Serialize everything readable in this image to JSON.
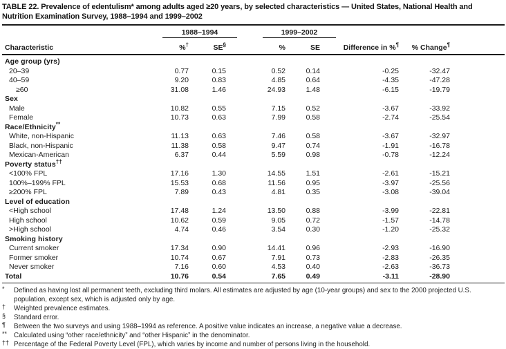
{
  "title": "TABLE 22. Prevalence of edentulism* among adults aged ≥20 years, by selected characteristics — United States, National Health and Nutrition Examination Survey, 1988–1994 and 1999–2002",
  "table": {
    "span_headers": [
      {
        "label": "1988–1994"
      },
      {
        "label": "1999–2002"
      }
    ],
    "columns": [
      {
        "text": "Characteristic",
        "sup": ""
      },
      {
        "text": "%",
        "sup": "†"
      },
      {
        "text": "SE",
        "sup": "§"
      },
      {
        "text": "%",
        "sup": ""
      },
      {
        "text": "SE",
        "sup": ""
      },
      {
        "text": "Difference in %",
        "sup": "¶"
      },
      {
        "text": "% Change",
        "sup": "¶"
      }
    ],
    "rows": [
      {
        "type": "section",
        "label": "Age group (yrs)",
        "sup": ""
      },
      {
        "type": "data",
        "indent": 1,
        "label": "20–39",
        "values": [
          "0.77",
          "0.15",
          "0.52",
          "0.14",
          "-0.25",
          "-32.47"
        ]
      },
      {
        "type": "data",
        "indent": 1,
        "label": "40–59",
        "values": [
          "9.20",
          "0.83",
          "4.85",
          "0.64",
          "-4.35",
          "-47.28"
        ]
      },
      {
        "type": "data",
        "indent": 2,
        "label": "≥60",
        "values": [
          "31.08",
          "1.46",
          "24.93",
          "1.48",
          "-6.15",
          "-19.79"
        ]
      },
      {
        "type": "section",
        "label": "Sex",
        "sup": ""
      },
      {
        "type": "data",
        "indent": 1,
        "label": "Male",
        "values": [
          "10.82",
          "0.55",
          "7.15",
          "0.52",
          "-3.67",
          "-33.92"
        ]
      },
      {
        "type": "data",
        "indent": 1,
        "label": "Female",
        "values": [
          "10.73",
          "0.63",
          "7.99",
          "0.58",
          "-2.74",
          "-25.54"
        ]
      },
      {
        "type": "section",
        "label": "Race/Ethnicity",
        "sup": "**"
      },
      {
        "type": "data",
        "indent": 1,
        "label": "White, non-Hispanic",
        "values": [
          "11.13",
          "0.63",
          "7.46",
          "0.58",
          "-3.67",
          "-32.97"
        ]
      },
      {
        "type": "data",
        "indent": 1,
        "label": "Black, non-Hispanic",
        "values": [
          "11.38",
          "0.58",
          "9.47",
          "0.74",
          "-1.91",
          "-16.78"
        ]
      },
      {
        "type": "data",
        "indent": 1,
        "label": "Mexican-American",
        "values": [
          "6.37",
          "0.44",
          "5.59",
          "0.98",
          "-0.78",
          "-12.24"
        ]
      },
      {
        "type": "section",
        "label": "Poverty status",
        "sup": "††"
      },
      {
        "type": "data",
        "indent": 1,
        "label": "<100% FPL",
        "values": [
          "17.16",
          "1.30",
          "14.55",
          "1.51",
          "-2.61",
          "-15.21"
        ]
      },
      {
        "type": "data",
        "indent": 1,
        "label": "100%–199% FPL",
        "values": [
          "15.53",
          "0.68",
          "11.56",
          "0.95",
          "-3.97",
          "-25.56"
        ]
      },
      {
        "type": "data",
        "indent": 1,
        "label": "≥200% FPL",
        "values": [
          "7.89",
          "0.43",
          "4.81",
          "0.35",
          "-3.08",
          "-39.04"
        ]
      },
      {
        "type": "section",
        "label": "Level of education",
        "sup": ""
      },
      {
        "type": "data",
        "indent": 1,
        "label": "<High school",
        "values": [
          "17.48",
          "1.24",
          "13.50",
          "0.88",
          "-3.99",
          "-22.81"
        ]
      },
      {
        "type": "data",
        "indent": 1,
        "label": "High school",
        "values": [
          "10.62",
          "0.59",
          "9.05",
          "0.72",
          "-1.57",
          "-14.78"
        ]
      },
      {
        "type": "data",
        "indent": 1,
        "label": ">High school",
        "values": [
          "4.74",
          "0.46",
          "3.54",
          "0.30",
          "-1.20",
          "-25.32"
        ]
      },
      {
        "type": "section",
        "label": "Smoking history",
        "sup": ""
      },
      {
        "type": "data",
        "indent": 1,
        "label": "Current smoker",
        "values": [
          "17.34",
          "0.90",
          "14.41",
          "0.96",
          "-2.93",
          "-16.90"
        ]
      },
      {
        "type": "data",
        "indent": 1,
        "label": "Former smoker",
        "values": [
          "10.74",
          "0.67",
          "7.91",
          "0.73",
          "-2.83",
          "-26.35"
        ]
      },
      {
        "type": "data",
        "indent": 1,
        "label": "Never smoker",
        "values": [
          "7.16",
          "0.60",
          "4.53",
          "0.40",
          "-2.63",
          "-36.73"
        ]
      },
      {
        "type": "total",
        "label": "Total",
        "values": [
          "10.76",
          "0.54",
          "7.65",
          "0.49",
          "-3.11",
          "-28.90"
        ]
      }
    ]
  },
  "footnotes": [
    {
      "marker": "*",
      "text": "Defined as having lost all permanent teeth, excluding third molars. All estimates are adjusted by age (10-year groups) and sex to the 2000 projected U.S. population, except sex, which is adjusted only by age."
    },
    {
      "marker": "†",
      "text": "Weighted prevalence estimates."
    },
    {
      "marker": "§",
      "text": "Standard error."
    },
    {
      "marker": "¶",
      "text": "Between the two surveys and using 1988–1994 as reference. A positive value indicates an increase, a negative value a decrease."
    },
    {
      "marker": "**",
      "text": "Calculated using “other race/ethnicity” and “other Hispanic” in the denominator."
    },
    {
      "marker": "††",
      "text": "Percentage of the Federal Poverty Level (FPL), which varies by income and number of persons living in the household."
    }
  ]
}
